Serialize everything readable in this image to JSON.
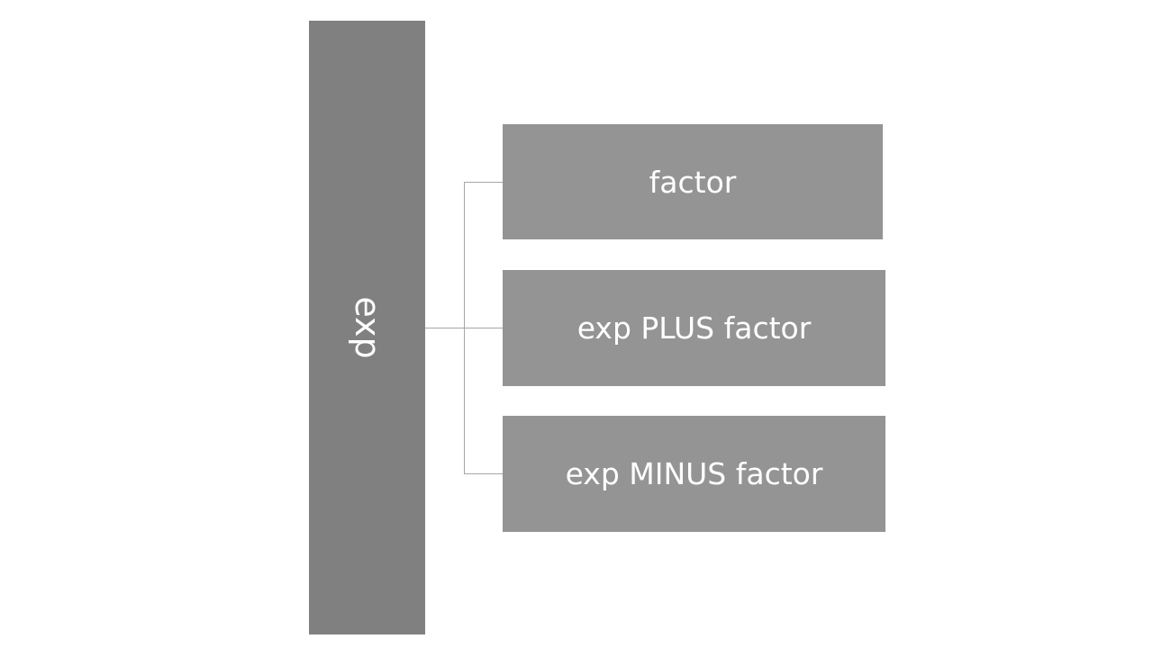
{
  "diagram": {
    "root": {
      "label": "exp"
    },
    "children": [
      {
        "label": "factor"
      },
      {
        "label": "exp PLUS factor"
      },
      {
        "label": "exp MINUS factor"
      }
    ],
    "colors": {
      "root_fill": "#808080",
      "child_fill": "#949494",
      "text": "#ffffff",
      "connector": "#a6a6a6"
    }
  }
}
